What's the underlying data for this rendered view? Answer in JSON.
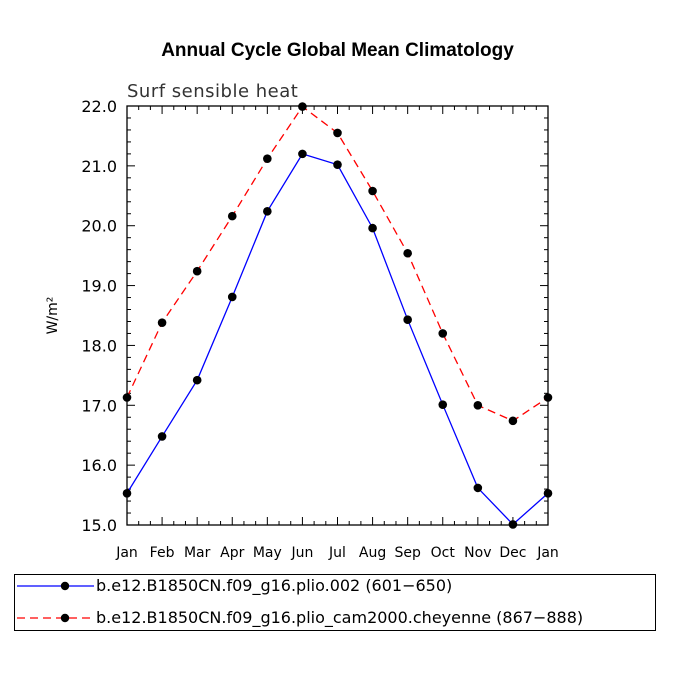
{
  "chart_data": {
    "type": "line",
    "title": "Annual Cycle Global Mean Climatology",
    "subtitle": "Surf sensible heat",
    "ylabel": "W/m²",
    "xlabel": "",
    "ylim": [
      15.0,
      22.0
    ],
    "yticks": [
      "15.0",
      "16.0",
      "17.0",
      "18.0",
      "19.0",
      "20.0",
      "21.0",
      "22.0"
    ],
    "categories": [
      "Jan",
      "Feb",
      "Mar",
      "Apr",
      "May",
      "Jun",
      "Jul",
      "Aug",
      "Sep",
      "Oct",
      "Nov",
      "Dec",
      "Jan"
    ],
    "series": [
      {
        "name": "b.e12.B1850CN.f09_g16.plio.002 (601−650)",
        "color": "#0000ff",
        "dash": "solid",
        "values": [
          15.53,
          16.48,
          17.42,
          18.81,
          20.24,
          21.2,
          21.02,
          19.96,
          18.43,
          17.01,
          15.62,
          15.01,
          15.53
        ]
      },
      {
        "name": "b.e12.B1850CN.f09_g16.plio_cam2000.cheyenne (867−888)",
        "color": "#ff0000",
        "dash": "dashed",
        "values": [
          17.13,
          18.38,
          19.24,
          20.16,
          21.12,
          21.99,
          21.55,
          20.58,
          19.54,
          18.2,
          17.0,
          16.74,
          17.13
        ]
      }
    ],
    "legend_position": "bottom"
  }
}
